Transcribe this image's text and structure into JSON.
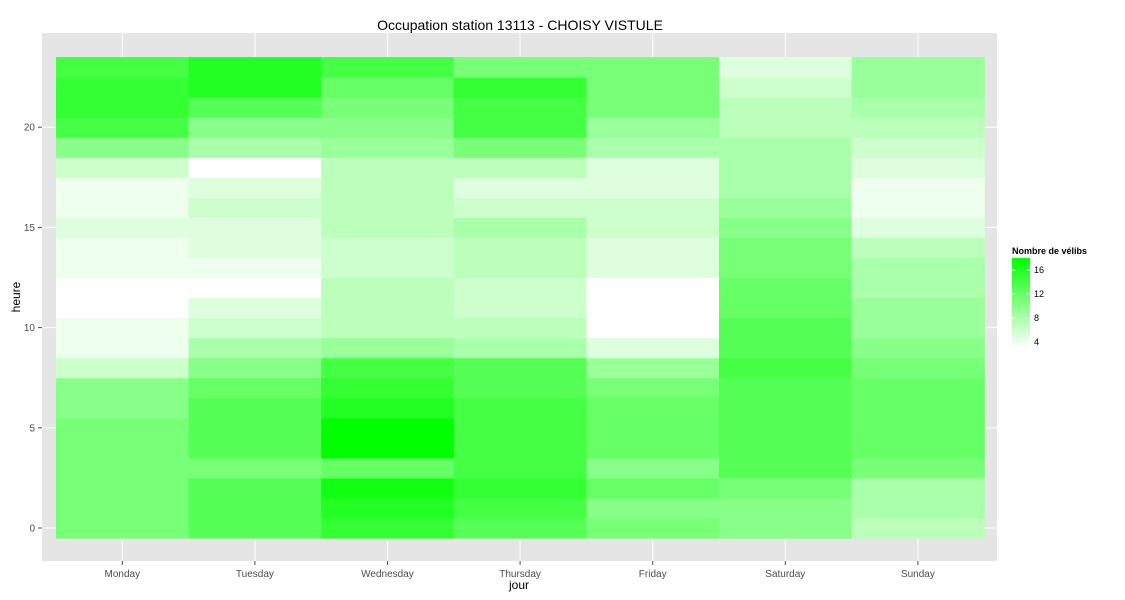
{
  "chart_data": {
    "type": "heatmap",
    "title": "Occupation station 13113 - CHOISY VISTULE",
    "xlabel": "jour",
    "ylabel": "heure",
    "categories": [
      "Monday",
      "Tuesday",
      "Wednesday",
      "Thursday",
      "Friday",
      "Saturday",
      "Sunday"
    ],
    "hours": [
      0,
      1,
      2,
      3,
      4,
      5,
      6,
      7,
      8,
      9,
      10,
      11,
      12,
      13,
      14,
      15,
      16,
      17,
      18,
      19,
      20,
      21,
      22,
      23
    ],
    "y_ticks": [
      0,
      5,
      10,
      15,
      20
    ],
    "ylim": [
      -0.5,
      23.5
    ],
    "grid": true,
    "legend": {
      "title": "Nombre de vélibs",
      "ticks": [
        4,
        8,
        12,
        16
      ],
      "range": [
        3,
        18
      ],
      "low_color": "#ffffff",
      "high_color": "#00ff00",
      "placement": "right"
    },
    "values": [
      [
        11,
        11,
        11,
        11,
        11,
        11,
        10,
        10,
        6,
        4,
        4,
        3,
        3,
        4,
        4,
        5,
        4,
        4,
        6,
        10,
        14,
        15,
        15,
        14
      ],
      [
        13,
        13,
        13,
        11,
        13,
        13,
        13,
        12,
        10,
        8,
        6,
        5,
        3,
        4,
        5,
        5,
        6,
        5,
        3,
        8,
        10,
        13,
        16,
        16
      ],
      [
        15,
        16,
        17,
        12,
        18,
        18,
        16,
        15,
        14,
        9,
        7,
        7,
        7,
        6,
        6,
        7,
        7,
        7,
        7,
        9,
        10,
        11,
        12,
        14
      ],
      [
        13,
        14,
        15,
        14,
        14,
        14,
        14,
        13,
        13,
        8,
        7,
        6,
        6,
        7,
        7,
        8,
        6,
        5,
        7,
        11,
        14,
        14,
        15,
        11
      ],
      [
        11,
        10,
        12,
        10,
        12,
        12,
        12,
        11,
        9,
        5,
        3,
        3,
        3,
        5,
        5,
        6,
        6,
        5,
        5,
        8,
        9,
        11,
        11,
        11
      ],
      [
        10,
        10,
        11,
        13,
        13,
        13,
        13,
        13,
        14,
        13,
        13,
        12,
        12,
        11,
        11,
        10,
        9,
        8,
        8,
        8,
        7,
        7,
        6,
        5
      ],
      [
        7,
        8,
        8,
        11,
        12,
        12,
        12,
        12,
        11,
        10,
        9,
        9,
        8,
        8,
        7,
        5,
        4,
        4,
        5,
        6,
        7,
        8,
        9,
        9
      ]
    ]
  }
}
